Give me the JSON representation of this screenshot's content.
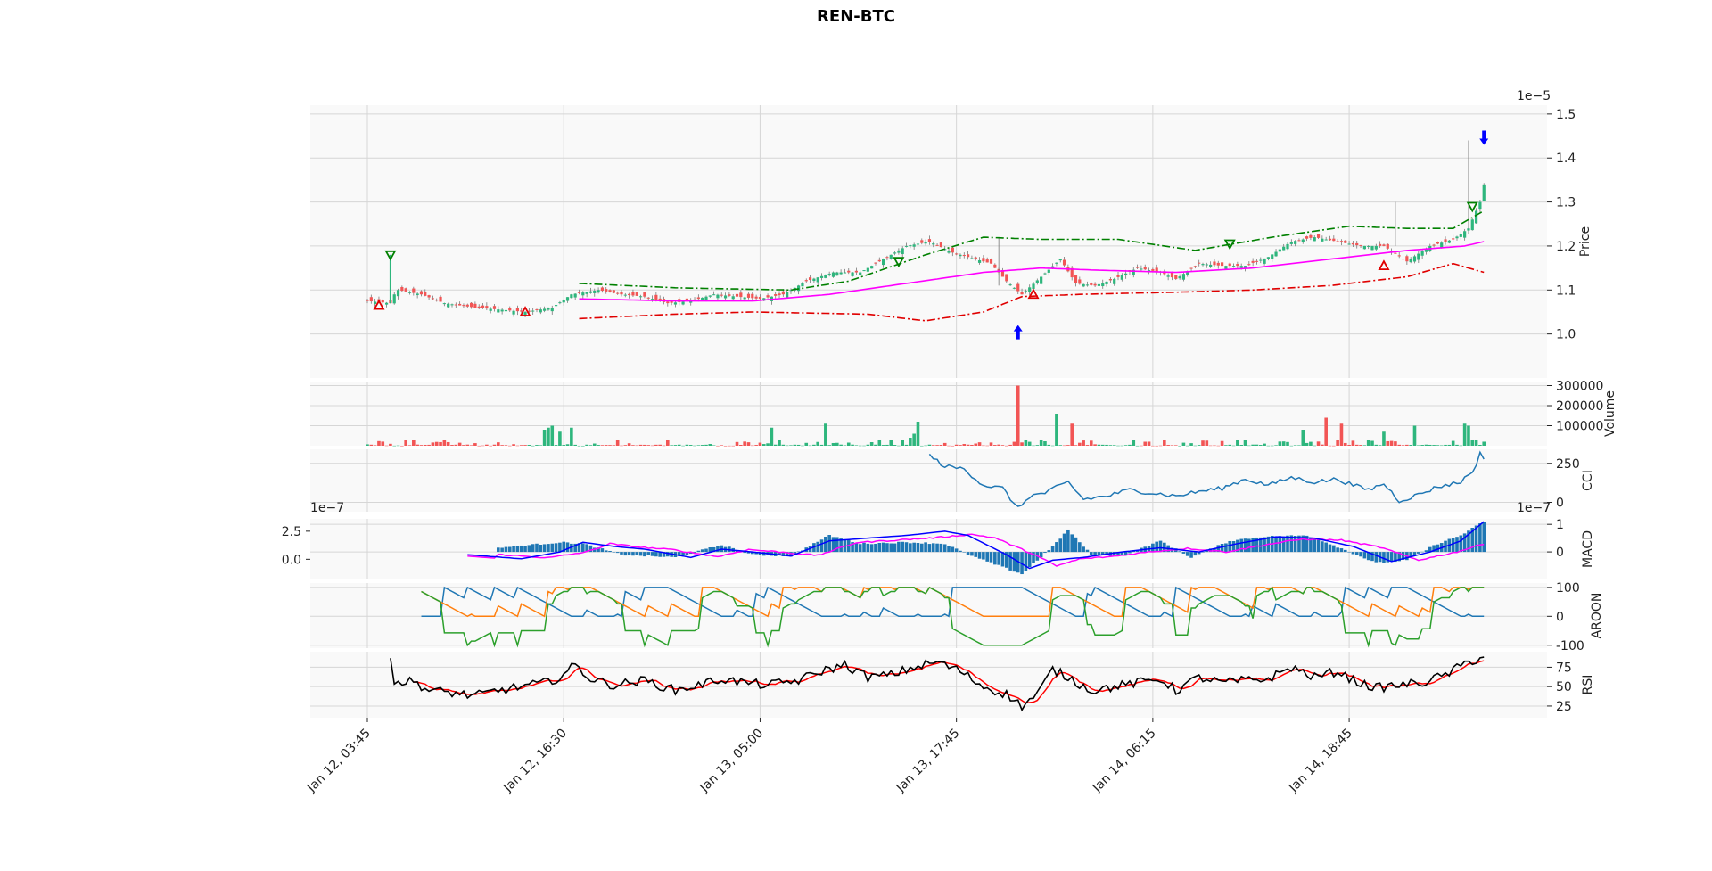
{
  "chart_data": {
    "type": "candlestick",
    "title": "REN-BTC",
    "x_tick_labels": [
      "Jan 12, 03:45",
      "Jan 12, 16:30",
      "Jan 13, 05:00",
      "Jan 13, 17:45",
      "Jan 14, 06:15",
      "Jan 14, 18:45"
    ],
    "x_tick_index": [
      0,
      51,
      102,
      153,
      204,
      255
    ],
    "n_candles": 291,
    "colors": {
      "up": "#2eb67d",
      "down": "#f25555",
      "ma": "#ff00ff",
      "band_upper": "#008000",
      "band_lower": "#e00000",
      "signal_buy": "#0000ff",
      "cci": "#1f77b4",
      "macd_line": "#0000ff",
      "macd_signal": "#ff00ff",
      "macd_hist": "#1f77b4",
      "aroon_up": "#ff7f0e",
      "aroon_down": "#1f77b4",
      "aroon_osc": "#2ca02c",
      "rsi": "#000000",
      "rsi_ma": "#ff0000"
    },
    "panels": [
      {
        "name": "price",
        "ylabel": "Price",
        "offset_text": "1e−5",
        "ticks": [
          1.0,
          1.1,
          1.2,
          1.3,
          1.4,
          1.5
        ],
        "ylim": [
          0.9,
          1.52
        ],
        "price_keypoints": [
          [
            0,
            1.075
          ],
          [
            6,
            1.07
          ],
          [
            7,
            1.09
          ],
          [
            8,
            1.1
          ],
          [
            14,
            1.09
          ],
          [
            20,
            1.07
          ],
          [
            28,
            1.06
          ],
          [
            35,
            1.055
          ],
          [
            41,
            1.05
          ],
          [
            48,
            1.06
          ],
          [
            53,
            1.09
          ],
          [
            60,
            1.1
          ],
          [
            66,
            1.09
          ],
          [
            72,
            1.085
          ],
          [
            78,
            1.07
          ],
          [
            84,
            1.075
          ],
          [
            90,
            1.09
          ],
          [
            96,
            1.085
          ],
          [
            102,
            1.08
          ],
          [
            108,
            1.09
          ],
          [
            114,
            1.12
          ],
          [
            121,
            1.14
          ],
          [
            128,
            1.14
          ],
          [
            134,
            1.17
          ],
          [
            140,
            1.2
          ],
          [
            146,
            1.21
          ],
          [
            152,
            1.185
          ],
          [
            158,
            1.17
          ],
          [
            162,
            1.16
          ],
          [
            166,
            1.12
          ],
          [
            170,
            1.09
          ],
          [
            175,
            1.13
          ],
          [
            180,
            1.17
          ],
          [
            184,
            1.115
          ],
          [
            189,
            1.11
          ],
          [
            194,
            1.125
          ],
          [
            200,
            1.15
          ],
          [
            206,
            1.14
          ],
          [
            210,
            1.125
          ],
          [
            216,
            1.16
          ],
          [
            222,
            1.155
          ],
          [
            228,
            1.155
          ],
          [
            234,
            1.175
          ],
          [
            240,
            1.21
          ],
          [
            246,
            1.22
          ],
          [
            252,
            1.21
          ],
          [
            258,
            1.2
          ],
          [
            264,
            1.2
          ],
          [
            270,
            1.165
          ],
          [
            276,
            1.2
          ],
          [
            282,
            1.215
          ],
          [
            286,
            1.24
          ],
          [
            289,
            1.3
          ],
          [
            290,
            1.34
          ]
        ],
        "ma_range": [
          55,
          290
        ],
        "ma_keypoints": [
          [
            55,
            1.08
          ],
          [
            80,
            1.075
          ],
          [
            100,
            1.075
          ],
          [
            120,
            1.09
          ],
          [
            140,
            1.115
          ],
          [
            160,
            1.14
          ],
          [
            175,
            1.15
          ],
          [
            190,
            1.145
          ],
          [
            210,
            1.14
          ],
          [
            230,
            1.15
          ],
          [
            250,
            1.17
          ],
          [
            270,
            1.19
          ],
          [
            285,
            1.2
          ],
          [
            290,
            1.21
          ]
        ],
        "band_upper_keypoints": [
          [
            55,
            1.115
          ],
          [
            80,
            1.105
          ],
          [
            110,
            1.1
          ],
          [
            125,
            1.12
          ],
          [
            145,
            1.18
          ],
          [
            160,
            1.22
          ],
          [
            175,
            1.215
          ],
          [
            195,
            1.215
          ],
          [
            215,
            1.19
          ],
          [
            235,
            1.22
          ],
          [
            255,
            1.245
          ],
          [
            270,
            1.24
          ],
          [
            282,
            1.24
          ],
          [
            290,
            1.28
          ]
        ],
        "band_lower_keypoints": [
          [
            55,
            1.035
          ],
          [
            80,
            1.045
          ],
          [
            100,
            1.05
          ],
          [
            130,
            1.045
          ],
          [
            145,
            1.03
          ],
          [
            160,
            1.05
          ],
          [
            170,
            1.085
          ],
          [
            185,
            1.09
          ],
          [
            210,
            1.095
          ],
          [
            230,
            1.1
          ],
          [
            250,
            1.11
          ],
          [
            270,
            1.13
          ],
          [
            282,
            1.16
          ],
          [
            290,
            1.14
          ]
        ],
        "up_markers": [
          [
            3,
            1.065
          ],
          [
            41,
            1.05
          ],
          [
            173,
            1.09
          ],
          [
            264,
            1.155
          ]
        ],
        "down_markers": [
          [
            6,
            1.18
          ],
          [
            138,
            1.165
          ],
          [
            224,
            1.205
          ],
          [
            287,
            1.29
          ]
        ],
        "spikes": [
          [
            6,
            1.07,
            1.18
          ],
          [
            143,
            1.14,
            1.29
          ],
          [
            164,
            1.11,
            1.22
          ],
          [
            267,
            1.2,
            1.3
          ],
          [
            286,
            1.24,
            1.44
          ]
        ],
        "buy_signal": [
          169,
          1.0
        ],
        "sell_signal": [
          290,
          1.45
        ]
      },
      {
        "name": "volume",
        "ylabel": "Volume",
        "ticks": [
          100000,
          200000,
          300000
        ],
        "tick_labels": [
          "100000",
          "200000",
          "300000"
        ],
        "ylim": [
          0,
          320000
        ],
        "volume_spikes": [
          [
            46,
            80000
          ],
          [
            47,
            90000
          ],
          [
            48,
            100000
          ],
          [
            50,
            70000
          ],
          [
            53,
            90000
          ],
          [
            105,
            90000
          ],
          [
            119,
            110000
          ],
          [
            143,
            120000
          ],
          [
            142,
            60000
          ],
          [
            141,
            40000
          ],
          [
            169,
            300000
          ],
          [
            179,
            160000
          ],
          [
            183,
            110000
          ],
          [
            243,
            80000
          ],
          [
            249,
            140000
          ],
          [
            253,
            110000
          ],
          [
            264,
            70000
          ],
          [
            272,
            100000
          ],
          [
            285,
            110000
          ],
          [
            286,
            100000
          ]
        ]
      },
      {
        "name": "cci",
        "ylabel": "CCI",
        "ticks": [
          0,
          250
        ],
        "ylim": [
          -60,
          340
        ],
        "cci_range": [
          146,
          290
        ],
        "cci_keypoints": [
          [
            146,
            300
          ],
          [
            150,
            230
          ],
          [
            155,
            215
          ],
          [
            160,
            110
          ],
          [
            165,
            90
          ],
          [
            169,
            -40
          ],
          [
            172,
            40
          ],
          [
            176,
            60
          ],
          [
            182,
            130
          ],
          [
            186,
            20
          ],
          [
            192,
            40
          ],
          [
            198,
            80
          ],
          [
            204,
            60
          ],
          [
            210,
            40
          ],
          [
            216,
            70
          ],
          [
            222,
            90
          ],
          [
            228,
            150
          ],
          [
            234,
            110
          ],
          [
            240,
            160
          ],
          [
            246,
            130
          ],
          [
            252,
            150
          ],
          [
            256,
            110
          ],
          [
            260,
            80
          ],
          [
            264,
            120
          ],
          [
            268,
            10
          ],
          [
            272,
            40
          ],
          [
            278,
            100
          ],
          [
            284,
            130
          ],
          [
            288,
            230
          ],
          [
            289,
            310
          ],
          [
            290,
            290
          ]
        ]
      },
      {
        "name": "macd",
        "ylabel": "MACD",
        "offset_text_left": "1e−7",
        "offset_text_right": "1e−7",
        "ticks_left": [
          0.0,
          2.5
        ],
        "ticks_right": [
          0,
          1
        ],
        "ylim_right": [
          -1.0,
          1.2
        ],
        "ylim_left": [
          -1.8,
          3.6
        ],
        "macd_range": [
          26,
          290
        ],
        "macd_keypoints": [
          [
            26,
            -0.1
          ],
          [
            40,
            -0.25
          ],
          [
            50,
            0
          ],
          [
            56,
            0.35
          ],
          [
            64,
            0.2
          ],
          [
            72,
            0.1
          ],
          [
            84,
            -0.2
          ],
          [
            92,
            0.1
          ],
          [
            100,
            0.0
          ],
          [
            110,
            -0.15
          ],
          [
            120,
            0.4
          ],
          [
            130,
            0.5
          ],
          [
            140,
            0.6
          ],
          [
            150,
            0.75
          ],
          [
            156,
            0.6
          ],
          [
            166,
            -0.1
          ],
          [
            172,
            -0.6
          ],
          [
            178,
            -0.3
          ],
          [
            186,
            -0.2
          ],
          [
            196,
            0.0
          ],
          [
            206,
            0.15
          ],
          [
            216,
            0.0
          ],
          [
            226,
            0.3
          ],
          [
            236,
            0.55
          ],
          [
            246,
            0.5
          ],
          [
            256,
            0.2
          ],
          [
            266,
            -0.35
          ],
          [
            276,
            0.0
          ],
          [
            284,
            0.4
          ],
          [
            290,
            1.1
          ]
        ],
        "hist_keypoints": [
          [
            34,
            0.15
          ],
          [
            50,
            0.35
          ],
          [
            56,
            0.3
          ],
          [
            66,
            -0.1
          ],
          [
            80,
            -0.2
          ],
          [
            92,
            0.25
          ],
          [
            100,
            -0.1
          ],
          [
            110,
            -0.15
          ],
          [
            120,
            0.6
          ],
          [
            128,
            0.3
          ],
          [
            140,
            0.35
          ],
          [
            150,
            0.3
          ],
          [
            156,
            -0.1
          ],
          [
            162,
            -0.4
          ],
          [
            170,
            -0.8
          ],
          [
            178,
            0.2
          ],
          [
            182,
            0.8
          ],
          [
            188,
            -0.1
          ],
          [
            196,
            -0.15
          ],
          [
            206,
            0.4
          ],
          [
            214,
            -0.2
          ],
          [
            224,
            0.4
          ],
          [
            232,
            0.55
          ],
          [
            244,
            0.6
          ],
          [
            250,
            0.3
          ],
          [
            256,
            -0.05
          ],
          [
            262,
            -0.4
          ],
          [
            270,
            -0.3
          ],
          [
            278,
            0.3
          ],
          [
            284,
            0.6
          ],
          [
            290,
            1.1
          ]
        ]
      },
      {
        "name": "aroon",
        "ylabel": "AROON",
        "ticks": [
          -100,
          0,
          100
        ],
        "ylim": [
          -110,
          115
        ],
        "aroon_period": 14,
        "aroon_start": 14
      },
      {
        "name": "rsi",
        "ylabel": "RSI",
        "ticks": [
          25,
          50,
          75
        ],
        "ylim": [
          10,
          95
        ],
        "rsi_range": [
          6,
          290
        ],
        "rsi_keypoints": [
          [
            6,
            92
          ],
          [
            7,
            55
          ],
          [
            12,
            57
          ],
          [
            16,
            45
          ],
          [
            22,
            42
          ],
          [
            28,
            38
          ],
          [
            34,
            45
          ],
          [
            40,
            50
          ],
          [
            46,
            55
          ],
          [
            50,
            62
          ],
          [
            54,
            78
          ],
          [
            58,
            60
          ],
          [
            64,
            52
          ],
          [
            72,
            58
          ],
          [
            80,
            45
          ],
          [
            86,
            52
          ],
          [
            92,
            60
          ],
          [
            98,
            55
          ],
          [
            104,
            52
          ],
          [
            112,
            58
          ],
          [
            118,
            70
          ],
          [
            124,
            78
          ],
          [
            130,
            62
          ],
          [
            136,
            65
          ],
          [
            142,
            75
          ],
          [
            148,
            82
          ],
          [
            154,
            70
          ],
          [
            160,
            50
          ],
          [
            166,
            40
          ],
          [
            170,
            25
          ],
          [
            174,
            40
          ],
          [
            178,
            72
          ],
          [
            182,
            62
          ],
          [
            188,
            45
          ],
          [
            194,
            50
          ],
          [
            200,
            55
          ],
          [
            206,
            60
          ],
          [
            210,
            45
          ],
          [
            216,
            62
          ],
          [
            222,
            55
          ],
          [
            228,
            58
          ],
          [
            234,
            60
          ],
          [
            240,
            75
          ],
          [
            246,
            62
          ],
          [
            252,
            70
          ],
          [
            256,
            58
          ],
          [
            262,
            48
          ],
          [
            268,
            52
          ],
          [
            274,
            55
          ],
          [
            280,
            65
          ],
          [
            286,
            82
          ],
          [
            290,
            88
          ]
        ]
      }
    ]
  }
}
